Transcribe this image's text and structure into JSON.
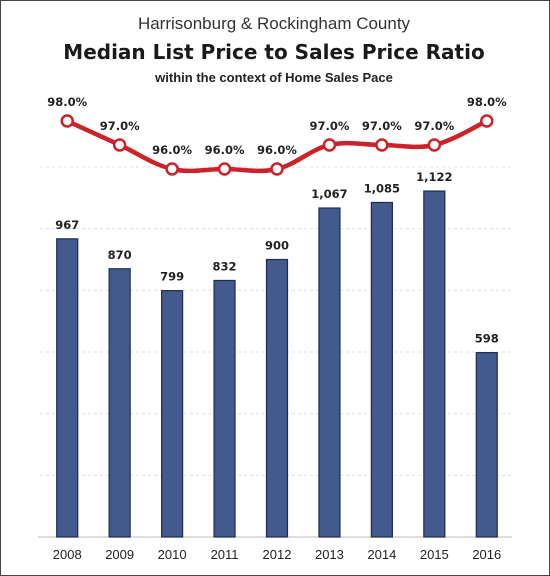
{
  "header": {
    "top_line": "Harrisonburg & Rockingham County",
    "title": "Median List Price to Sales Price Ratio",
    "subtitle": "within the context of Home Sales Pace"
  },
  "colors": {
    "bar_fill": "#435a8e",
    "bar_outline": "#1e2c4e",
    "ratio_line": "#cc2229",
    "marker_fill": "#ffffff",
    "gridline": "#e0e0e0"
  },
  "chart_data": {
    "type": "bar",
    "categories": [
      "2008",
      "2009",
      "2010",
      "2011",
      "2012",
      "2013",
      "2014",
      "2015",
      "2016"
    ],
    "series": [
      {
        "type": "bar",
        "values": [
          967,
          870,
          799,
          832,
          900,
          1067,
          1085,
          1122,
          598
        ],
        "labels": [
          "967",
          "870",
          "799",
          "832",
          "900",
          "1,067",
          "1,085",
          "1,122",
          "598"
        ]
      },
      {
        "type": "line",
        "values": [
          98.0,
          97.0,
          96.0,
          96.0,
          96.0,
          97.0,
          97.0,
          97.0,
          98.0
        ],
        "labels": [
          "98.0%",
          "97.0%",
          "96.0%",
          "96.0%",
          "96.0%",
          "97.0%",
          "97.0%",
          "97.0%",
          "98.0%"
        ]
      }
    ],
    "xlabel": "",
    "ylabel": "",
    "ylim": [
      0,
      1200
    ],
    "line_ylim": [
      94.0,
      99.0
    ],
    "grid": true,
    "legend": "none"
  }
}
